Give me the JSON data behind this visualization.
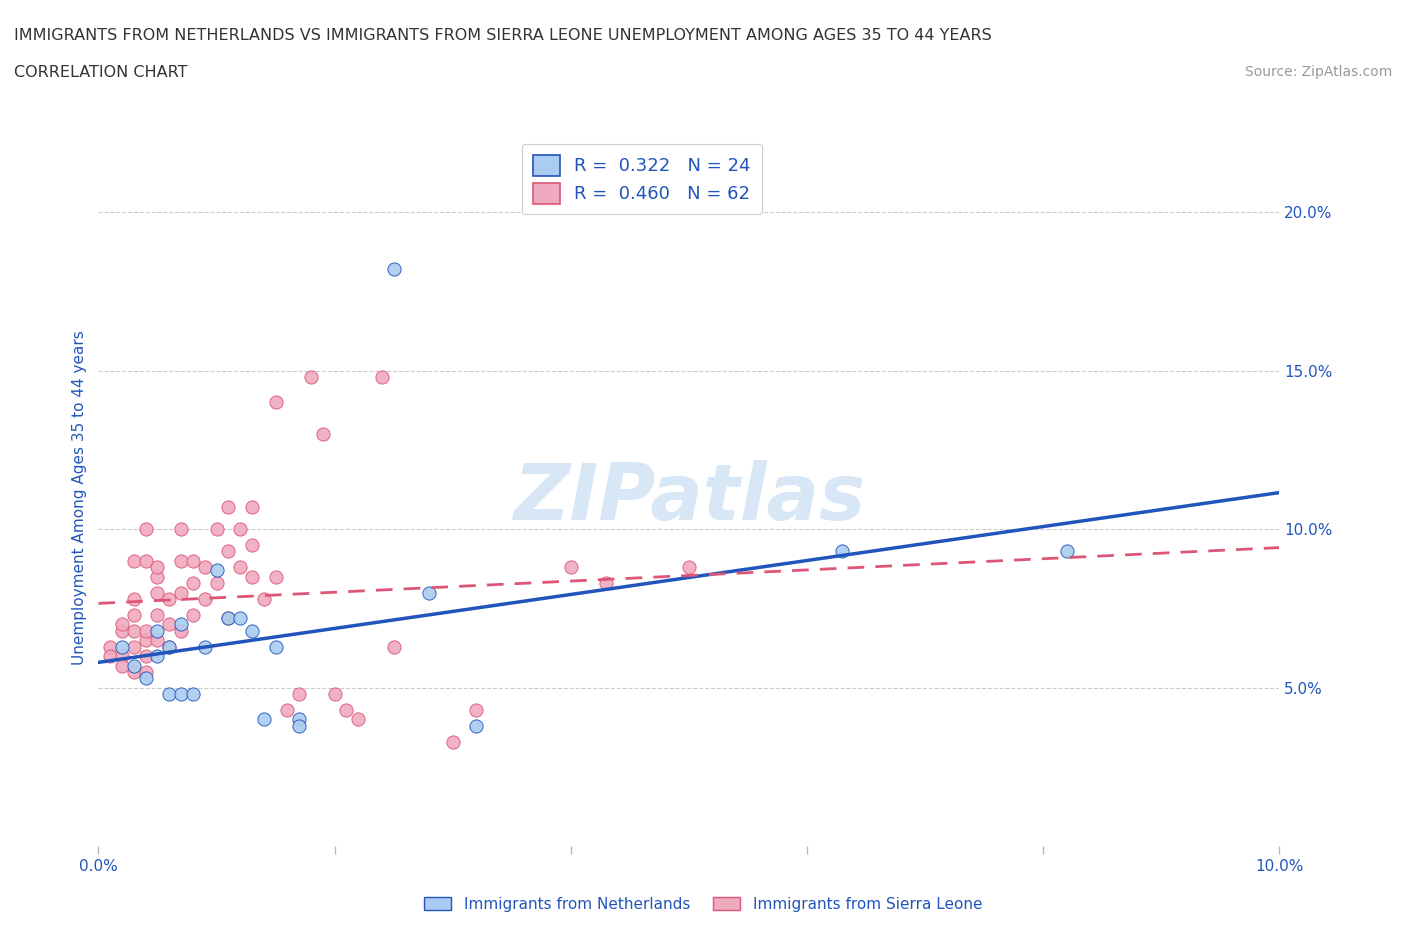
{
  "title_line1": "IMMIGRANTS FROM NETHERLANDS VS IMMIGRANTS FROM SIERRA LEONE UNEMPLOYMENT AMONG AGES 35 TO 44 YEARS",
  "title_line2": "CORRELATION CHART",
  "source_text": "Source: ZipAtlas.com",
  "ylabel": "Unemployment Among Ages 35 to 44 years",
  "watermark": "ZIPatlas",
  "xlim": [
    0.0,
    0.1
  ],
  "ylim": [
    0.0,
    0.22
  ],
  "yticks_right": [
    0.05,
    0.1,
    0.15,
    0.2
  ],
  "ytick_right_labels": [
    "5.0%",
    "10.0%",
    "15.0%",
    "20.0%"
  ],
  "legend_r1": "R =  0.322   N = 24",
  "legend_r2": "R =  0.460   N = 62",
  "netherlands_color": "#aaccf0",
  "sierra_leone_color": "#f0aac0",
  "netherlands_line_color": "#2255bb",
  "sierra_leone_line_color": "#dd5577",
  "legend_text_color": "#2255bb",
  "axis_color": "#2255bb",
  "netherlands_scatter": [
    [
      0.002,
      0.063
    ],
    [
      0.003,
      0.057
    ],
    [
      0.004,
      0.053
    ],
    [
      0.005,
      0.06
    ],
    [
      0.005,
      0.068
    ],
    [
      0.006,
      0.063
    ],
    [
      0.006,
      0.048
    ],
    [
      0.007,
      0.048
    ],
    [
      0.007,
      0.07
    ],
    [
      0.008,
      0.048
    ],
    [
      0.009,
      0.063
    ],
    [
      0.01,
      0.087
    ],
    [
      0.011,
      0.072
    ],
    [
      0.012,
      0.072
    ],
    [
      0.013,
      0.068
    ],
    [
      0.014,
      0.04
    ],
    [
      0.015,
      0.063
    ],
    [
      0.017,
      0.04
    ],
    [
      0.017,
      0.038
    ],
    [
      0.025,
      0.182
    ],
    [
      0.028,
      0.08
    ],
    [
      0.032,
      0.038
    ],
    [
      0.063,
      0.093
    ],
    [
      0.082,
      0.093
    ]
  ],
  "sierra_leone_scatter": [
    [
      0.001,
      0.063
    ],
    [
      0.001,
      0.06
    ],
    [
      0.002,
      0.06
    ],
    [
      0.002,
      0.057
    ],
    [
      0.002,
      0.068
    ],
    [
      0.002,
      0.07
    ],
    [
      0.003,
      0.055
    ],
    [
      0.003,
      0.063
    ],
    [
      0.003,
      0.068
    ],
    [
      0.003,
      0.073
    ],
    [
      0.003,
      0.078
    ],
    [
      0.003,
      0.09
    ],
    [
      0.004,
      0.055
    ],
    [
      0.004,
      0.06
    ],
    [
      0.004,
      0.065
    ],
    [
      0.004,
      0.068
    ],
    [
      0.004,
      0.09
    ],
    [
      0.004,
      0.1
    ],
    [
      0.005,
      0.065
    ],
    [
      0.005,
      0.073
    ],
    [
      0.005,
      0.08
    ],
    [
      0.005,
      0.085
    ],
    [
      0.005,
      0.088
    ],
    [
      0.006,
      0.063
    ],
    [
      0.006,
      0.07
    ],
    [
      0.006,
      0.078
    ],
    [
      0.007,
      0.068
    ],
    [
      0.007,
      0.08
    ],
    [
      0.007,
      0.09
    ],
    [
      0.007,
      0.1
    ],
    [
      0.008,
      0.073
    ],
    [
      0.008,
      0.083
    ],
    [
      0.008,
      0.09
    ],
    [
      0.009,
      0.078
    ],
    [
      0.009,
      0.088
    ],
    [
      0.01,
      0.083
    ],
    [
      0.01,
      0.1
    ],
    [
      0.011,
      0.072
    ],
    [
      0.011,
      0.093
    ],
    [
      0.011,
      0.107
    ],
    [
      0.012,
      0.088
    ],
    [
      0.012,
      0.1
    ],
    [
      0.013,
      0.085
    ],
    [
      0.013,
      0.095
    ],
    [
      0.013,
      0.107
    ],
    [
      0.014,
      0.078
    ],
    [
      0.015,
      0.085
    ],
    [
      0.015,
      0.14
    ],
    [
      0.016,
      0.043
    ],
    [
      0.017,
      0.048
    ],
    [
      0.018,
      0.148
    ],
    [
      0.019,
      0.13
    ],
    [
      0.02,
      0.048
    ],
    [
      0.021,
      0.043
    ],
    [
      0.022,
      0.04
    ],
    [
      0.024,
      0.148
    ],
    [
      0.025,
      0.063
    ],
    [
      0.03,
      0.033
    ],
    [
      0.032,
      0.043
    ],
    [
      0.04,
      0.088
    ],
    [
      0.043,
      0.083
    ],
    [
      0.05,
      0.088
    ]
  ]
}
